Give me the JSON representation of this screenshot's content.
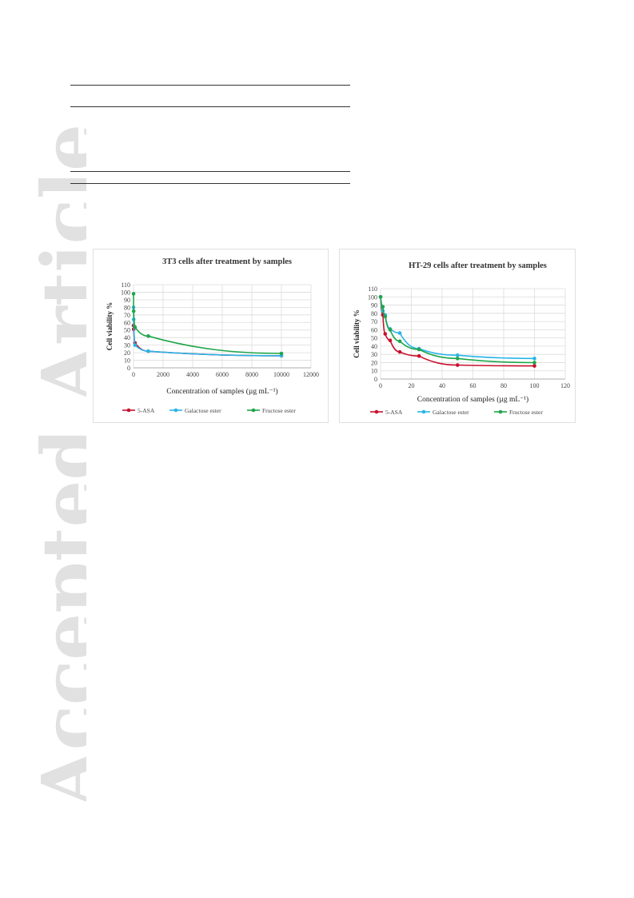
{
  "watermark": {
    "text": "Accepted Article"
  },
  "chart_data": [
    {
      "type": "line",
      "title": "3T3 cells after treatment by samples",
      "xlabel": "Concentration of samples (µg mL⁻¹)",
      "ylabel": "Cell viability %",
      "xlim": [
        0,
        12000
      ],
      "ylim": [
        0,
        110
      ],
      "x_ticks": [
        0,
        2000,
        4000,
        6000,
        8000,
        10000,
        12000
      ],
      "y_ticks": [
        0,
        10,
        20,
        30,
        40,
        50,
        60,
        70,
        80,
        90,
        100,
        110
      ],
      "grid": true,
      "legend": "bottom",
      "series": [
        {
          "name": "5-ASA",
          "color": "#c8102e",
          "x": [
            1,
            10,
            100,
            1000,
            10000
          ],
          "y": [
            56,
            51,
            33,
            22,
            16
          ]
        },
        {
          "name": "Galactose ester",
          "color": "#29b5e8",
          "x": [
            1,
            10,
            100,
            1000,
            10000
          ],
          "y": [
            80,
            64,
            30,
            22,
            16
          ]
        },
        {
          "name": "Fructose ester",
          "color": "#1fa64a",
          "x": [
            1,
            10,
            100,
            1000,
            10000
          ],
          "y": [
            98,
            75,
            54,
            42,
            19
          ]
        }
      ]
    },
    {
      "type": "line",
      "title": "HT-29 cells after treatment by samples",
      "xlabel": "Concentration of samples (µg mL⁻¹)",
      "ylabel": "Cell viability %",
      "xlim": [
        0,
        120
      ],
      "ylim": [
        0,
        110
      ],
      "x_ticks": [
        0,
        20,
        40,
        60,
        80,
        100,
        120
      ],
      "y_ticks": [
        0,
        10,
        20,
        30,
        40,
        50,
        60,
        70,
        80,
        90,
        100,
        110
      ],
      "grid": true,
      "legend": "bottom",
      "series": [
        {
          "name": "5-ASA",
          "color": "#c8102e",
          "x": [
            0,
            1.5,
            3,
            6.25,
            12.5,
            25,
            50,
            100
          ],
          "y": [
            100,
            78,
            55,
            47,
            33,
            28,
            17,
            16
          ]
        },
        {
          "name": "Galactose ester",
          "color": "#29b5e8",
          "x": [
            0,
            1.5,
            3,
            6.25,
            12.5,
            25,
            50,
            100
          ],
          "y": [
            100,
            83,
            78,
            61,
            56,
            37,
            29,
            25
          ]
        },
        {
          "name": "Fructose ester",
          "color": "#1fa64a",
          "x": [
            0,
            1.5,
            3,
            6.25,
            12.5,
            25,
            50,
            100
          ],
          "y": [
            100,
            88,
            76,
            60,
            46,
            36,
            25,
            20
          ]
        }
      ]
    }
  ]
}
